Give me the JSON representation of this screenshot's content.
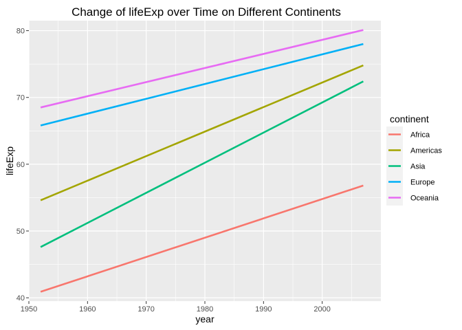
{
  "chart_data": {
    "type": "line",
    "title": "Change of lifeExp over Time on Different Continents",
    "xlabel": "year",
    "ylabel": "lifeExp",
    "xlim": [
      1950,
      2010
    ],
    "ylim": [
      39.5,
      81.5
    ],
    "xticks": [
      1950,
      1960,
      1970,
      1980,
      1990,
      2000
    ],
    "yticks": [
      40,
      50,
      60,
      70,
      80
    ],
    "grid": true,
    "legend": {
      "title": "continent",
      "position": "right"
    },
    "series": [
      {
        "name": "Africa",
        "color": "#F8766D",
        "x": [
          1952,
          2007
        ],
        "y": [
          40.9,
          56.8
        ]
      },
      {
        "name": "Americas",
        "color": "#A3A500",
        "x": [
          1952,
          2007
        ],
        "y": [
          54.6,
          74.8
        ]
      },
      {
        "name": "Asia",
        "color": "#00BF7D",
        "x": [
          1952,
          2007
        ],
        "y": [
          47.6,
          72.4
        ]
      },
      {
        "name": "Europe",
        "color": "#00B0F6",
        "x": [
          1952,
          2007
        ],
        "y": [
          65.8,
          78.0
        ]
      },
      {
        "name": "Oceania",
        "color": "#E76BF3",
        "x": [
          1952,
          2007
        ],
        "y": [
          68.5,
          80.1
        ]
      }
    ]
  }
}
